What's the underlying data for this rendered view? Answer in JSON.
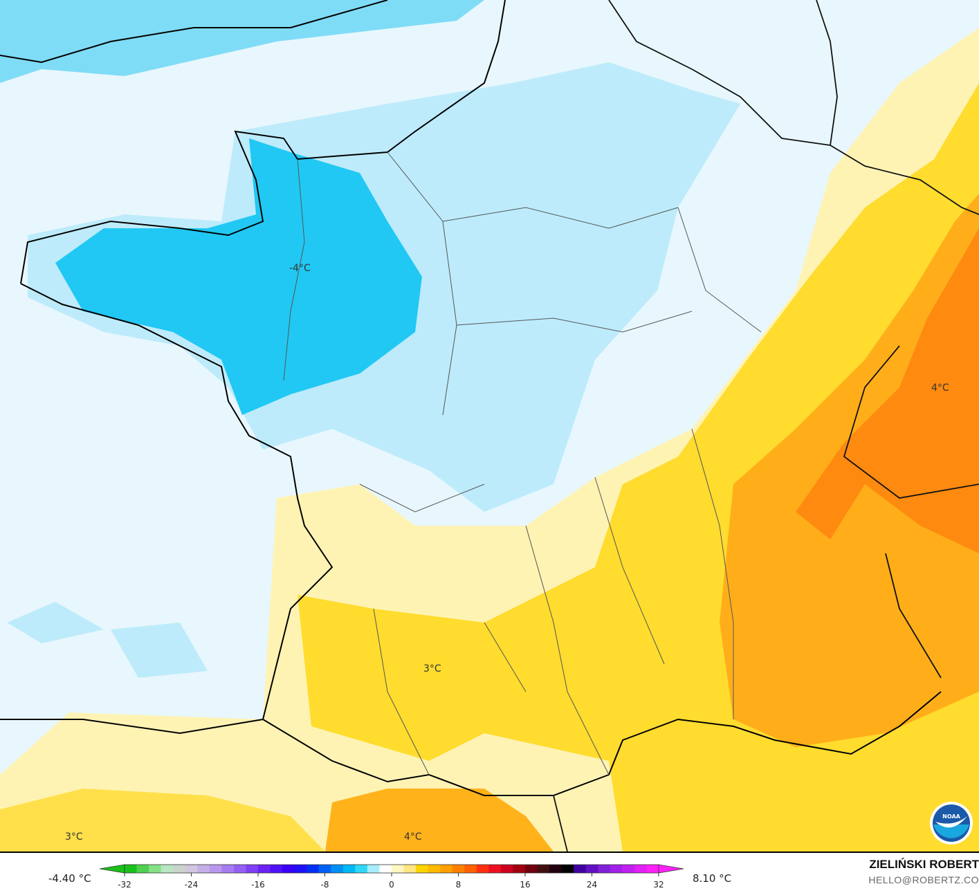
{
  "map": {
    "labels": [
      {
        "text": "-4°C"
      },
      {
        "text": "4°C"
      },
      {
        "text": "3°C"
      },
      {
        "text": "3°C"
      },
      {
        "text": "4°C"
      }
    ],
    "logo": "NOAA",
    "colors": {
      "sea_cold": "#e6f6fd",
      "light_blue": "#b3e9fa",
      "blue": "#1ccdf6",
      "pale_yellow": "#fff3b0",
      "yellow": "#ffd400",
      "orange": "#ff9a00",
      "deep_orange": "#ff6a00"
    }
  },
  "legend": {
    "min_value": "-4.40 °C",
    "max_value": "8.10 °C",
    "ticks": [
      "-32",
      "-24",
      "-16",
      "-8",
      "0",
      "8",
      "16",
      "24",
      "32"
    ],
    "range": [
      -34,
      34
    ]
  },
  "branding": {
    "name": "ZIELIŃSKI ROBERT",
    "email": "HELLO@ROBERTZ.CO"
  }
}
